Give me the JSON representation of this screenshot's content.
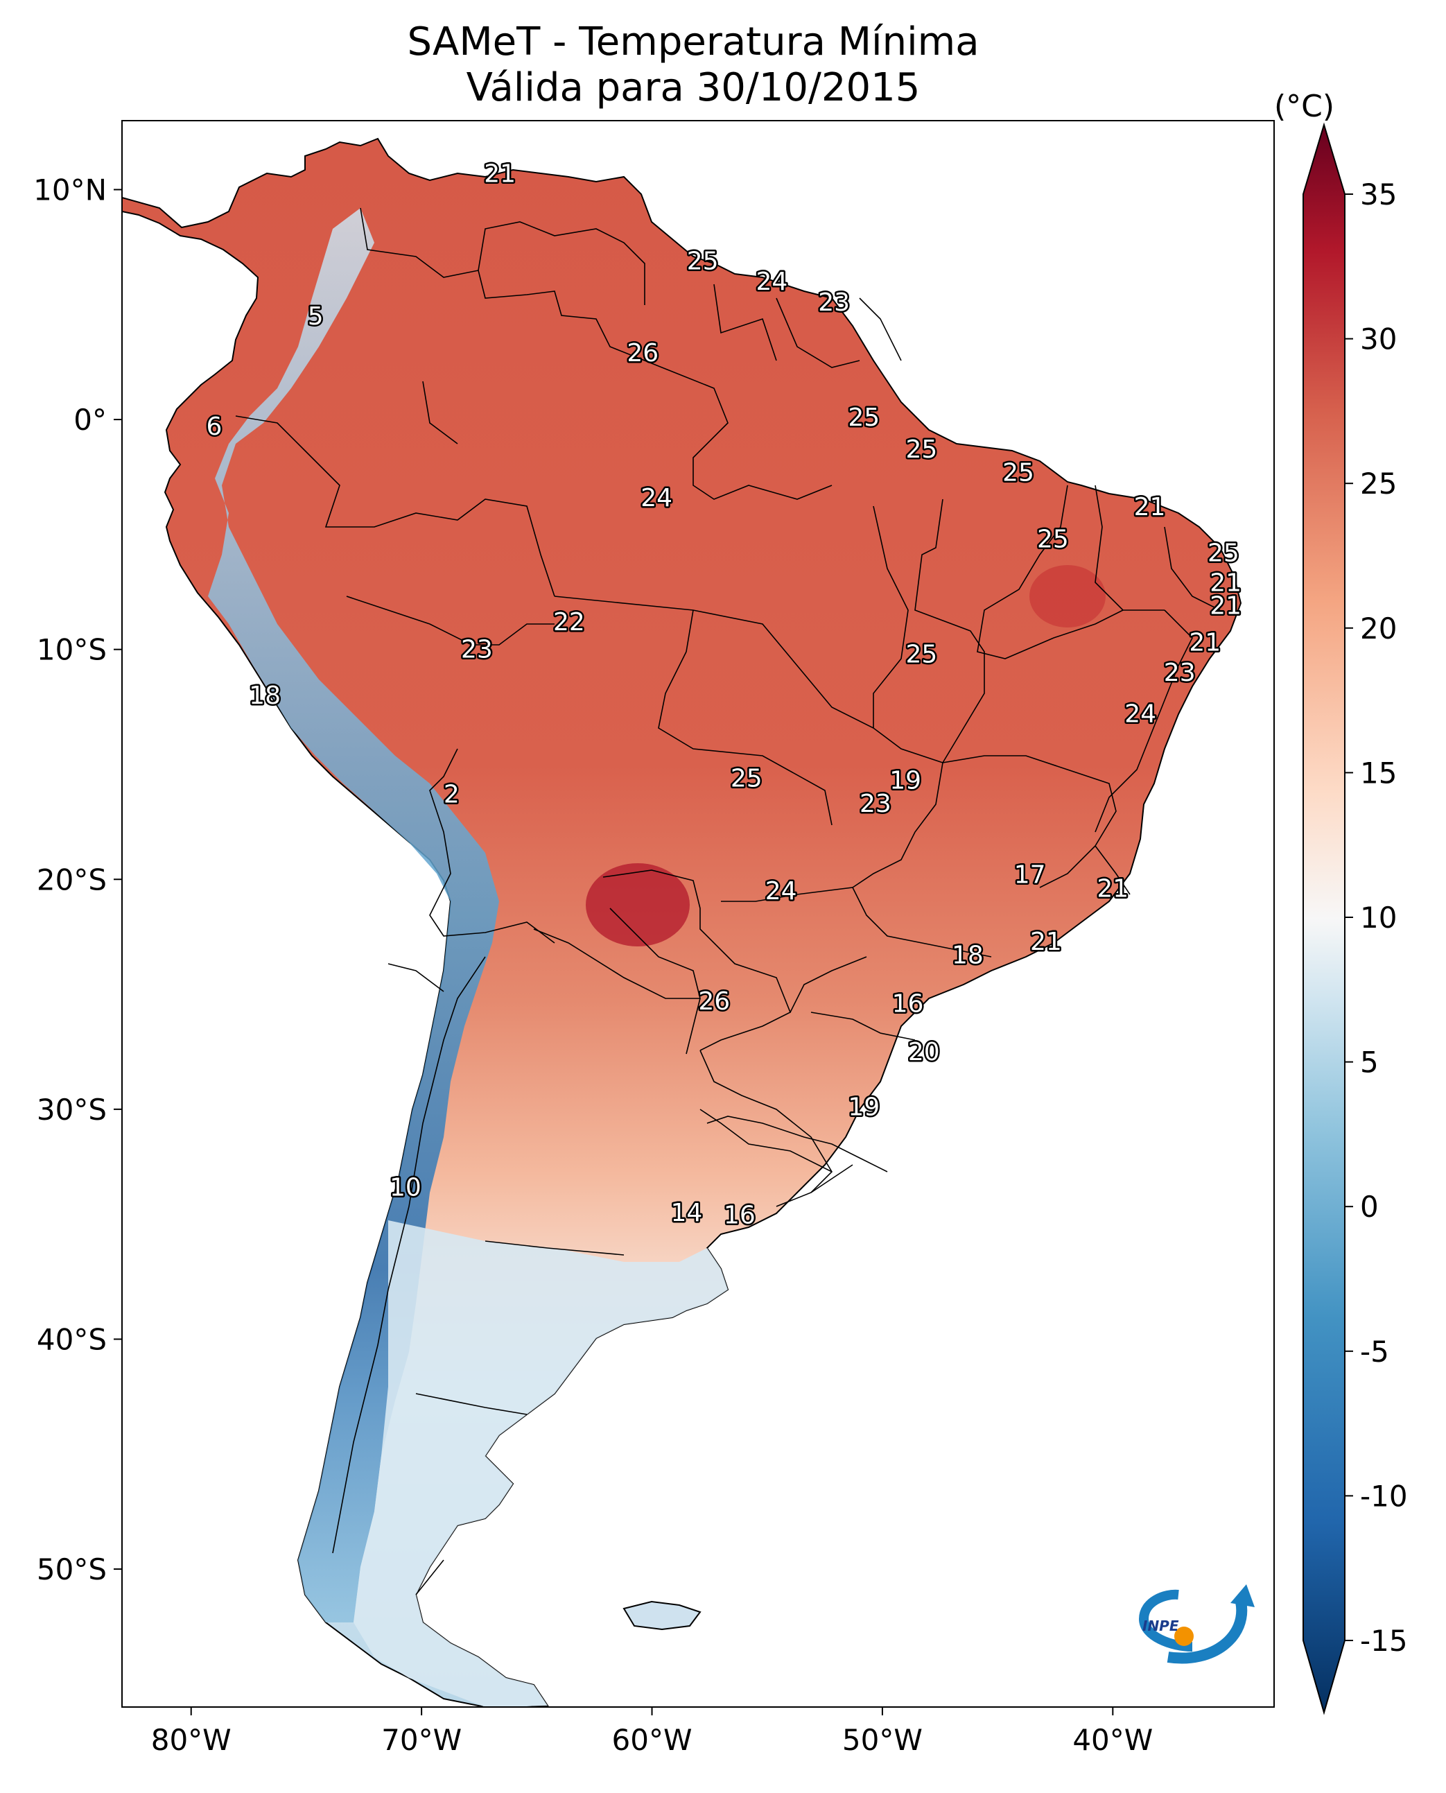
{
  "title": "SAMeT - Temperatura Mínima",
  "subtitle": "Válida para 30/10/2015",
  "colorbar": {
    "unit": "(°C)",
    "ticks": [
      "35",
      "30",
      "25",
      "20",
      "15",
      "10",
      "5",
      "0",
      "-5",
      "-10",
      "-15"
    ],
    "tick_values": [
      35,
      30,
      25,
      20,
      15,
      10,
      5,
      0,
      -5,
      -10,
      -15
    ],
    "range": [
      -15,
      35
    ],
    "colormap": "RdBu_r",
    "colors": {
      "low": "#053061",
      "mid": "#f7f7f7",
      "high": "#67001f"
    }
  },
  "axes": {
    "lon_labels": [
      "80°W",
      "70°W",
      "60°W",
      "50°W",
      "40°W"
    ],
    "lon_values": [
      -80,
      -70,
      -60,
      -50,
      -40
    ],
    "lat_labels": [
      "10°N",
      "0°",
      "10°S",
      "20°S",
      "30°S",
      "40°S",
      "50°S"
    ],
    "lat_values": [
      10,
      0,
      -10,
      -20,
      -30,
      -40,
      -50
    ],
    "lon_range": [
      -83,
      -33
    ],
    "lat_range": [
      -56,
      13
    ]
  },
  "station_labels": [
    {
      "text": "21",
      "lon": -66.6,
      "lat": 10.7
    },
    {
      "text": "25",
      "lon": -57.8,
      "lat": 6.9
    },
    {
      "text": "24",
      "lon": -54.8,
      "lat": 6.0
    },
    {
      "text": "23",
      "lon": -52.1,
      "lat": 5.1
    },
    {
      "text": "5",
      "lon": -74.6,
      "lat": 4.5
    },
    {
      "text": "26",
      "lon": -60.4,
      "lat": 2.9
    },
    {
      "text": "6",
      "lon": -79.0,
      "lat": -0.3
    },
    {
      "text": "25",
      "lon": -50.8,
      "lat": 0.1
    },
    {
      "text": "25",
      "lon": -48.3,
      "lat": -1.3
    },
    {
      "text": "25",
      "lon": -44.1,
      "lat": -2.3
    },
    {
      "text": "24",
      "lon": -59.8,
      "lat": -3.4
    },
    {
      "text": "21",
      "lon": -38.4,
      "lat": -3.8
    },
    {
      "text": "25",
      "lon": -42.6,
      "lat": -5.2
    },
    {
      "text": "25",
      "lon": -35.2,
      "lat": -5.8
    },
    {
      "text": "21",
      "lon": -35.1,
      "lat": -7.1
    },
    {
      "text": "21",
      "lon": -35.1,
      "lat": -8.1
    },
    {
      "text": "22",
      "lon": -63.6,
      "lat": -8.8
    },
    {
      "text": "21",
      "lon": -36.0,
      "lat": -9.7
    },
    {
      "text": "25",
      "lon": -48.3,
      "lat": -10.2
    },
    {
      "text": "23",
      "lon": -67.6,
      "lat": -10.0
    },
    {
      "text": "23",
      "lon": -37.1,
      "lat": -11.0
    },
    {
      "text": "18",
      "lon": -76.8,
      "lat": -12.0
    },
    {
      "text": "24",
      "lon": -38.8,
      "lat": -12.8
    },
    {
      "text": "25",
      "lon": -55.9,
      "lat": -15.6
    },
    {
      "text": "19",
      "lon": -49.0,
      "lat": -15.7
    },
    {
      "text": "2",
      "lon": -68.7,
      "lat": -16.3
    },
    {
      "text": "23",
      "lon": -50.3,
      "lat": -16.7
    },
    {
      "text": "17",
      "lon": -43.6,
      "lat": -19.8
    },
    {
      "text": "21",
      "lon": -40.0,
      "lat": -20.4
    },
    {
      "text": "24",
      "lon": -54.4,
      "lat": -20.5
    },
    {
      "text": "21",
      "lon": -42.9,
      "lat": -22.7
    },
    {
      "text": "18",
      "lon": -46.3,
      "lat": -23.3
    },
    {
      "text": "26",
      "lon": -57.3,
      "lat": -25.3
    },
    {
      "text": "16",
      "lon": -48.9,
      "lat": -25.4
    },
    {
      "text": "20",
      "lon": -48.2,
      "lat": -27.5
    },
    {
      "text": "19",
      "lon": -50.8,
      "lat": -29.9
    },
    {
      "text": "10",
      "lon": -70.7,
      "lat": -33.4
    },
    {
      "text": "14",
      "lon": -58.5,
      "lat": -34.5
    },
    {
      "text": "16",
      "lon": -56.2,
      "lat": -34.6
    }
  ],
  "logo": {
    "text": "INPE"
  }
}
